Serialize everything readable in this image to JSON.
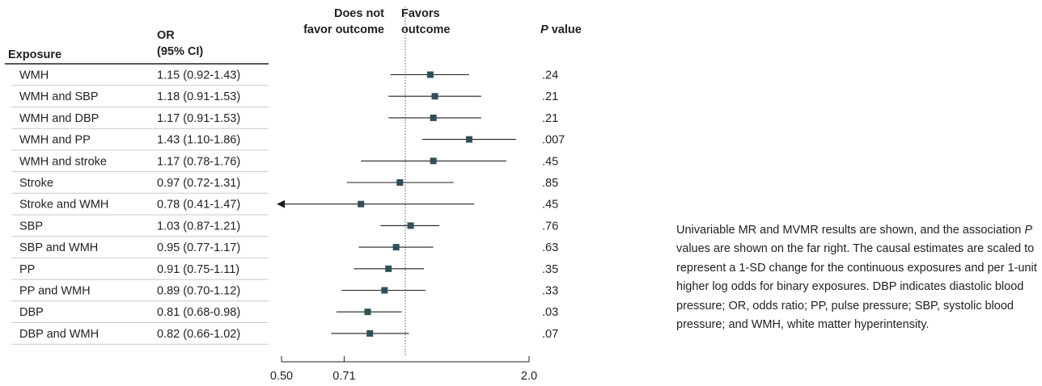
{
  "headers": {
    "exposure": "Exposure",
    "or_line1": "OR",
    "or_line2": "(95% CI)",
    "left_dir_line1": "Does not",
    "left_dir_line2": "favor outcome",
    "right_dir_line1": "Favors",
    "right_dir_line2": "outcome",
    "p_italic": "P",
    "p_rest": " value"
  },
  "chart_data": {
    "type": "forest",
    "scale": "log",
    "xlim": [
      0.5,
      2.0
    ],
    "reference_line": 1.0,
    "x_ticks": [
      0.5,
      0.71,
      2.0
    ],
    "x_tick_labels": [
      "0.50",
      "0.71",
      "2.0"
    ],
    "marker_color": "#2f4f5a",
    "rows": [
      {
        "exposure": "WMH",
        "or_text": "1.15 (0.92-1.43)",
        "or": 1.15,
        "lower": 0.92,
        "upper": 1.43,
        "p": ".24",
        "arrow_left": false
      },
      {
        "exposure": "WMH and SBP",
        "or_text": "1.18 (0.91-1.53)",
        "or": 1.18,
        "lower": 0.91,
        "upper": 1.53,
        "p": ".21",
        "arrow_left": false
      },
      {
        "exposure": "WMH and DBP",
        "or_text": "1.17 (0.91-1.53)",
        "or": 1.17,
        "lower": 0.91,
        "upper": 1.53,
        "p": ".21",
        "arrow_left": false
      },
      {
        "exposure": "WMH and PP",
        "or_text": "1.43 (1.10-1.86)",
        "or": 1.43,
        "lower": 1.1,
        "upper": 1.86,
        "p": ".007",
        "arrow_left": false
      },
      {
        "exposure": "WMH and stroke",
        "or_text": "1.17 (0.78-1.76)",
        "or": 1.17,
        "lower": 0.78,
        "upper": 1.76,
        "p": ".45",
        "arrow_left": false
      },
      {
        "exposure": "Stroke",
        "or_text": "0.97 (0.72-1.31)",
        "or": 0.97,
        "lower": 0.72,
        "upper": 1.31,
        "p": ".85",
        "arrow_left": false
      },
      {
        "exposure": "Stroke and WMH",
        "or_text": "0.78 (0.41-1.47)",
        "or": 0.78,
        "lower": 0.41,
        "upper": 1.47,
        "p": ".45",
        "arrow_left": true
      },
      {
        "exposure": "SBP",
        "or_text": "1.03 (0.87-1.21)",
        "or": 1.03,
        "lower": 0.87,
        "upper": 1.21,
        "p": ".76",
        "arrow_left": false
      },
      {
        "exposure": "SBP and WMH",
        "or_text": "0.95 (0.77-1.17)",
        "or": 0.95,
        "lower": 0.77,
        "upper": 1.17,
        "p": ".63",
        "arrow_left": false
      },
      {
        "exposure": "PP",
        "or_text": "0.91 (0.75-1.11)",
        "or": 0.91,
        "lower": 0.75,
        "upper": 1.11,
        "p": ".35",
        "arrow_left": false
      },
      {
        "exposure": "PP and WMH",
        "or_text": "0.89 (0.70-1.12)",
        "or": 0.89,
        "lower": 0.7,
        "upper": 1.12,
        "p": ".33",
        "arrow_left": false
      },
      {
        "exposure": "DBP",
        "or_text": "0.81 (0.68-0.98)",
        "or": 0.81,
        "lower": 0.68,
        "upper": 0.98,
        "p": ".03",
        "arrow_left": false
      },
      {
        "exposure": "DBP and WMH",
        "or_text": "0.82 (0.66-1.02)",
        "or": 0.82,
        "lower": 0.66,
        "upper": 1.02,
        "p": ".07",
        "arrow_left": false
      }
    ]
  },
  "note": {
    "part1": "Univariable MR and MVMR results are shown, and the association ",
    "p_italic": "P",
    "part2": " values are shown on the far right. The causal estimates are scaled to represent a 1-SD change for the continuous exposures and per 1-unit higher log odds for binary exposures. DBP indicates diastolic blood pressure; OR, odds ratio; PP, pulse pressure; SBP, systolic blood pressure; and WMH, white matter hyperintensity."
  }
}
